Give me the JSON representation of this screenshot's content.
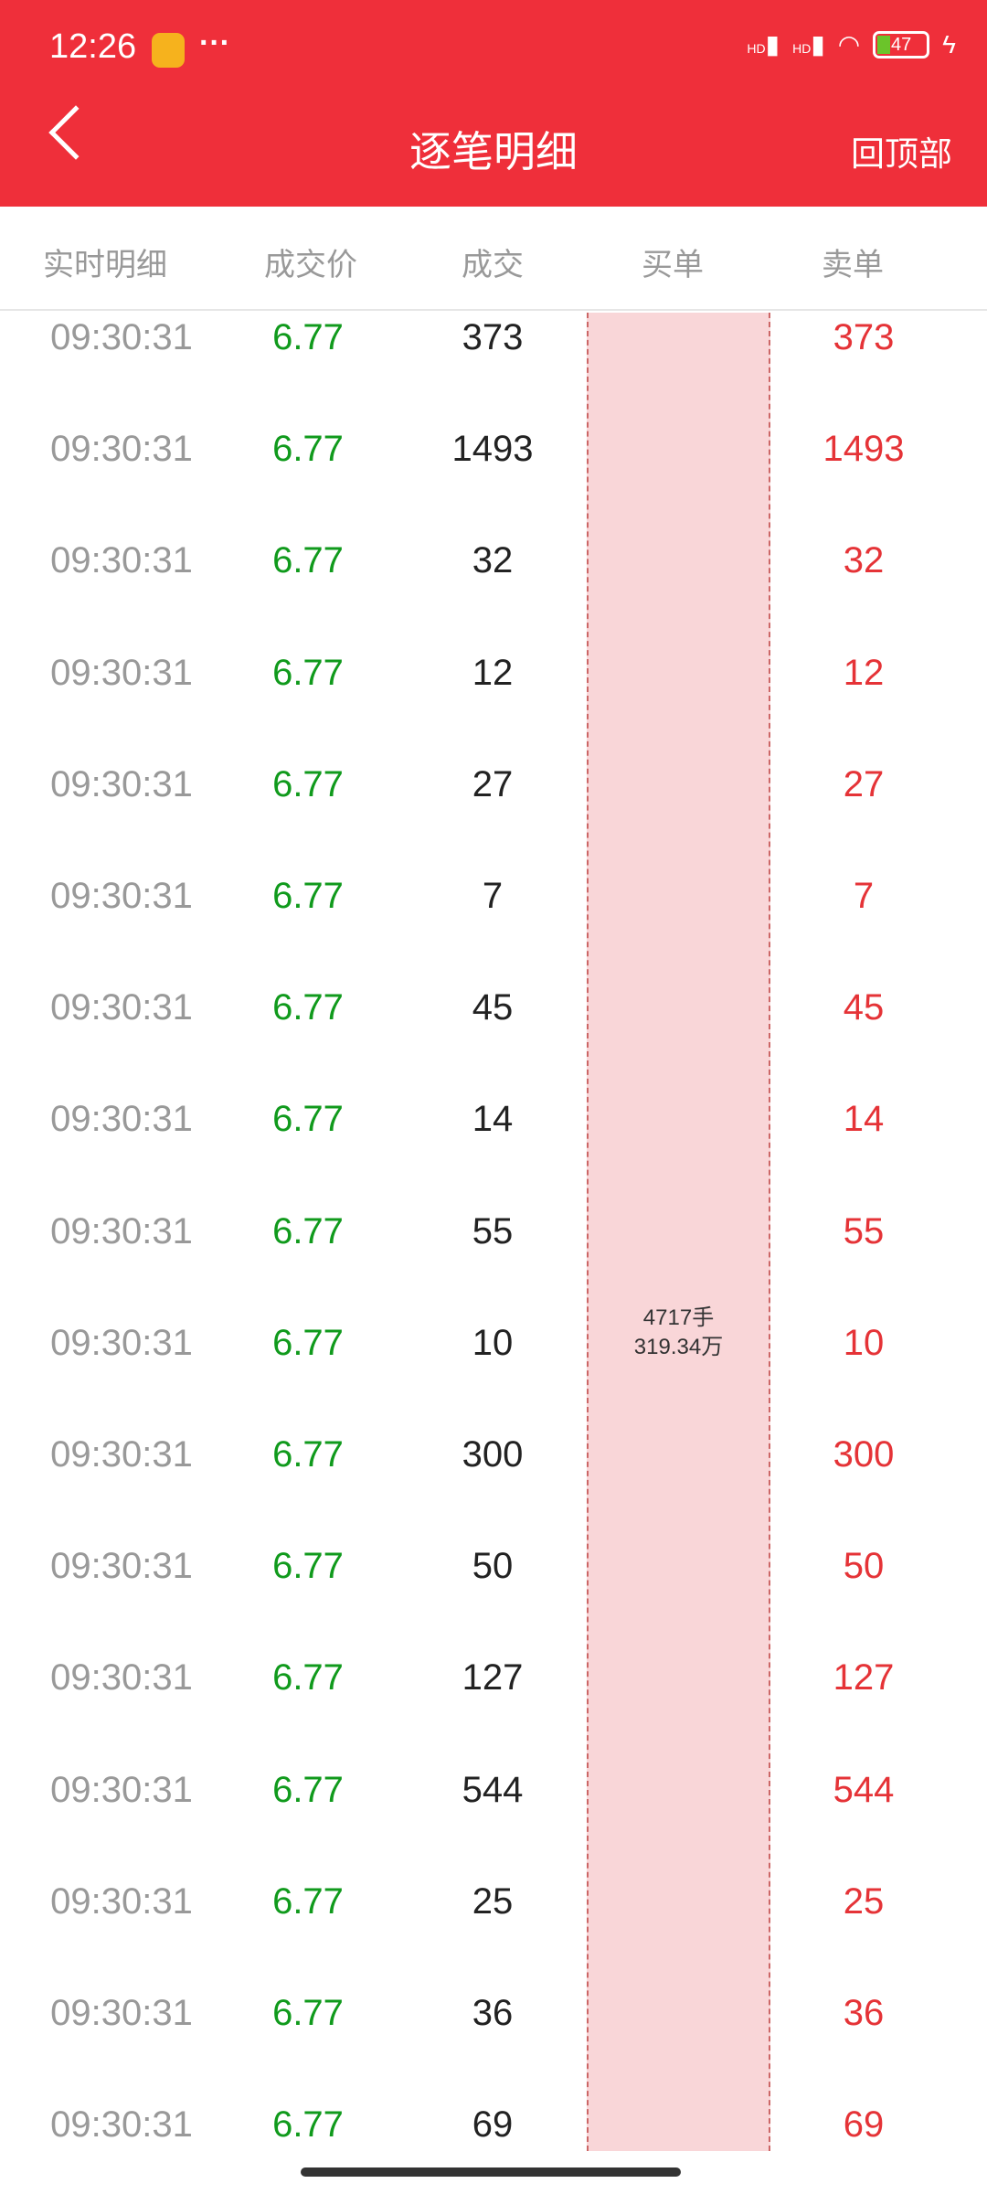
{
  "status_bar": {
    "time": "12:26",
    "dots": "···",
    "battery": "47",
    "signal1": "HD",
    "signal2": "HD"
  },
  "header": {
    "title": "逐笔明细",
    "back_to_top": "回顶部"
  },
  "columns": [
    "实时明细",
    "成交价",
    "成交",
    "买单",
    "卖单"
  ],
  "buy_summary": {
    "lots": "4717手",
    "amount": "319.34万"
  },
  "colors": {
    "brand": "#ef2f3a",
    "price_green": "#109a1c",
    "sell_red": "#e53337",
    "buy_highlight": "#f9d6d8"
  },
  "rows": [
    {
      "time": "09:30:31",
      "price": "6.77",
      "volume": "373",
      "sell": "373"
    },
    {
      "time": "09:30:31",
      "price": "6.77",
      "volume": "1493",
      "sell": "1493"
    },
    {
      "time": "09:30:31",
      "price": "6.77",
      "volume": "32",
      "sell": "32"
    },
    {
      "time": "09:30:31",
      "price": "6.77",
      "volume": "12",
      "sell": "12"
    },
    {
      "time": "09:30:31",
      "price": "6.77",
      "volume": "27",
      "sell": "27"
    },
    {
      "time": "09:30:31",
      "price": "6.77",
      "volume": "7",
      "sell": "7"
    },
    {
      "time": "09:30:31",
      "price": "6.77",
      "volume": "45",
      "sell": "45"
    },
    {
      "time": "09:30:31",
      "price": "6.77",
      "volume": "14",
      "sell": "14"
    },
    {
      "time": "09:30:31",
      "price": "6.77",
      "volume": "55",
      "sell": "55"
    },
    {
      "time": "09:30:31",
      "price": "6.77",
      "volume": "10",
      "sell": "10"
    },
    {
      "time": "09:30:31",
      "price": "6.77",
      "volume": "300",
      "sell": "300"
    },
    {
      "time": "09:30:31",
      "price": "6.77",
      "volume": "50",
      "sell": "50"
    },
    {
      "time": "09:30:31",
      "price": "6.77",
      "volume": "127",
      "sell": "127"
    },
    {
      "time": "09:30:31",
      "price": "6.77",
      "volume": "544",
      "sell": "544"
    },
    {
      "time": "09:30:31",
      "price": "6.77",
      "volume": "25",
      "sell": "25"
    },
    {
      "time": "09:30:31",
      "price": "6.77",
      "volume": "36",
      "sell": "36"
    },
    {
      "time": "09:30:31",
      "price": "6.77",
      "volume": "69",
      "sell": "69"
    }
  ]
}
